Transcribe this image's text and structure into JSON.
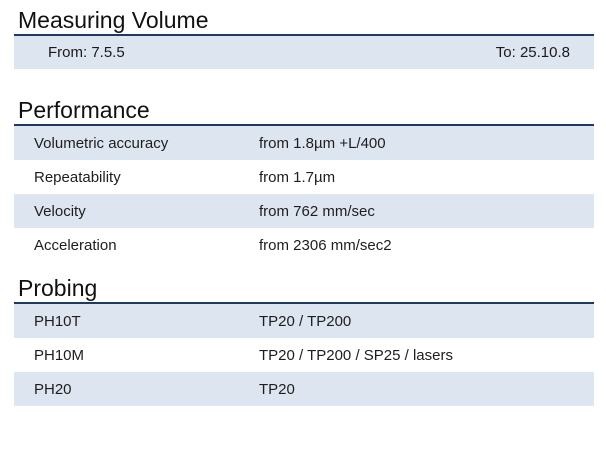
{
  "measuring_volume": {
    "title": "Measuring Volume",
    "from": "From: 7.5.5",
    "to": "To: 25.10.8"
  },
  "performance": {
    "title": "Performance",
    "rows": [
      {
        "label": "Volumetric accuracy",
        "value": "from 1.8µm +L/400"
      },
      {
        "label": "Repeatability",
        "value": "from 1.7µm"
      },
      {
        "label": "Velocity",
        "value": "from 762 mm/sec"
      },
      {
        "label": "Acceleration",
        "value": "from 2306 mm/sec2"
      }
    ]
  },
  "probing": {
    "title": "Probing",
    "rows": [
      {
        "label": "PH10T",
        "value": "TP20 / TP200"
      },
      {
        "label": "PH10M",
        "value": "TP20 / TP200 / SP25 / lasers"
      },
      {
        "label": "PH20",
        "value": "TP20"
      }
    ]
  }
}
